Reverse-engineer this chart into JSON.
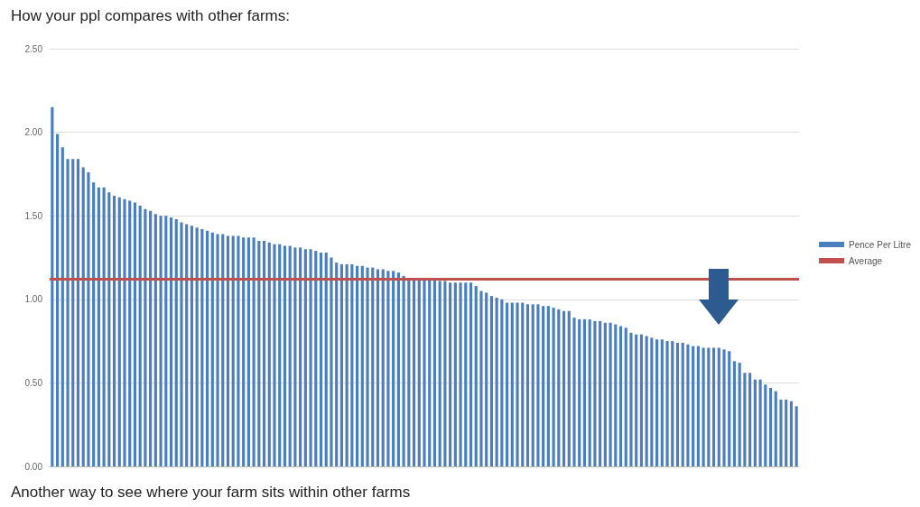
{
  "chart_data": {
    "type": "bar",
    "title": "How your ppl compares with other farms:",
    "annotations": [
      "Another way to see where your farm sits within other farms"
    ],
    "categories": [
      null,
      null,
      null,
      null,
      null,
      null,
      null,
      null,
      null,
      null,
      null,
      null,
      null,
      null,
      null,
      null,
      null,
      null,
      null,
      null,
      null,
      null,
      null,
      null,
      null,
      null,
      null,
      null,
      null,
      null,
      null,
      null,
      null,
      null,
      null,
      null,
      null,
      null,
      null,
      null,
      null,
      null,
      null,
      null,
      null,
      null,
      null,
      null,
      null,
      null,
      null,
      null,
      null,
      null,
      null,
      null,
      null,
      null,
      null,
      null,
      null,
      null,
      null,
      null,
      null,
      null,
      null,
      null,
      null,
      null,
      null,
      null,
      null,
      null,
      null,
      null,
      null,
      null,
      null,
      null,
      null,
      null,
      null,
      null,
      null,
      null,
      null,
      null,
      null,
      null,
      null,
      null,
      null,
      null,
      null,
      null,
      null,
      null,
      null,
      null,
      null,
      null,
      null,
      null,
      null,
      null,
      null,
      null,
      null,
      null,
      null,
      null,
      null,
      null,
      null,
      null,
      null,
      null,
      null,
      null,
      null,
      null,
      null,
      null,
      null,
      null,
      null,
      null,
      null,
      null,
      null,
      null,
      null,
      null,
      null,
      null,
      null,
      null,
      null,
      null,
      null,
      null,
      null,
      null,
      null
    ],
    "series": [
      {
        "name": "Pence Per Litre",
        "color": "#4a7ebf",
        "values": [
          2.15,
          1.99,
          1.91,
          1.84,
          1.84,
          1.84,
          1.79,
          1.76,
          1.7,
          1.67,
          1.67,
          1.64,
          1.62,
          1.61,
          1.6,
          1.59,
          1.58,
          1.56,
          1.54,
          1.53,
          1.51,
          1.5,
          1.5,
          1.49,
          1.48,
          1.46,
          1.45,
          1.44,
          1.43,
          1.42,
          1.41,
          1.4,
          1.39,
          1.39,
          1.38,
          1.38,
          1.38,
          1.37,
          1.37,
          1.37,
          1.35,
          1.35,
          1.34,
          1.33,
          1.33,
          1.32,
          1.32,
          1.31,
          1.31,
          1.3,
          1.3,
          1.29,
          1.28,
          1.28,
          1.25,
          1.22,
          1.21,
          1.21,
          1.21,
          1.2,
          1.2,
          1.19,
          1.19,
          1.18,
          1.18,
          1.17,
          1.17,
          1.16,
          1.14,
          1.12,
          1.12,
          1.12,
          1.12,
          1.12,
          1.12,
          1.11,
          1.11,
          1.1,
          1.1,
          1.1,
          1.1,
          1.1,
          1.08,
          1.05,
          1.04,
          1.02,
          1.01,
          1.0,
          0.98,
          0.98,
          0.98,
          0.98,
          0.97,
          0.97,
          0.97,
          0.96,
          0.96,
          0.95,
          0.94,
          0.93,
          0.93,
          0.89,
          0.88,
          0.88,
          0.88,
          0.87,
          0.87,
          0.86,
          0.86,
          0.85,
          0.84,
          0.83,
          0.8,
          0.79,
          0.79,
          0.78,
          0.77,
          0.76,
          0.76,
          0.75,
          0.75,
          0.74,
          0.74,
          0.73,
          0.72,
          0.72,
          0.71,
          0.71,
          0.71,
          0.71,
          0.7,
          0.69,
          0.63,
          0.62,
          0.56,
          0.56,
          0.52,
          0.52,
          0.49,
          0.47,
          0.45,
          0.4,
          0.4,
          0.39,
          0.36
        ]
      }
    ],
    "ref_lines": [
      {
        "axis": "y",
        "value": 1.12,
        "label": "Average",
        "color": "#c0504d",
        "line_style": "solid"
      }
    ],
    "ylim": [
      0,
      2.5
    ],
    "yticks": [
      {
        "value": 0,
        "label": "0.00"
      },
      {
        "value": 0.5,
        "label": "0.50"
      },
      {
        "value": 1,
        "label": "1.00"
      },
      {
        "value": 1.5,
        "label": "1.50"
      },
      {
        "value": 2,
        "label": "2.00"
      },
      {
        "value": 2.5,
        "label": "2.50"
      }
    ],
    "grid": "y",
    "legend": "right"
  }
}
